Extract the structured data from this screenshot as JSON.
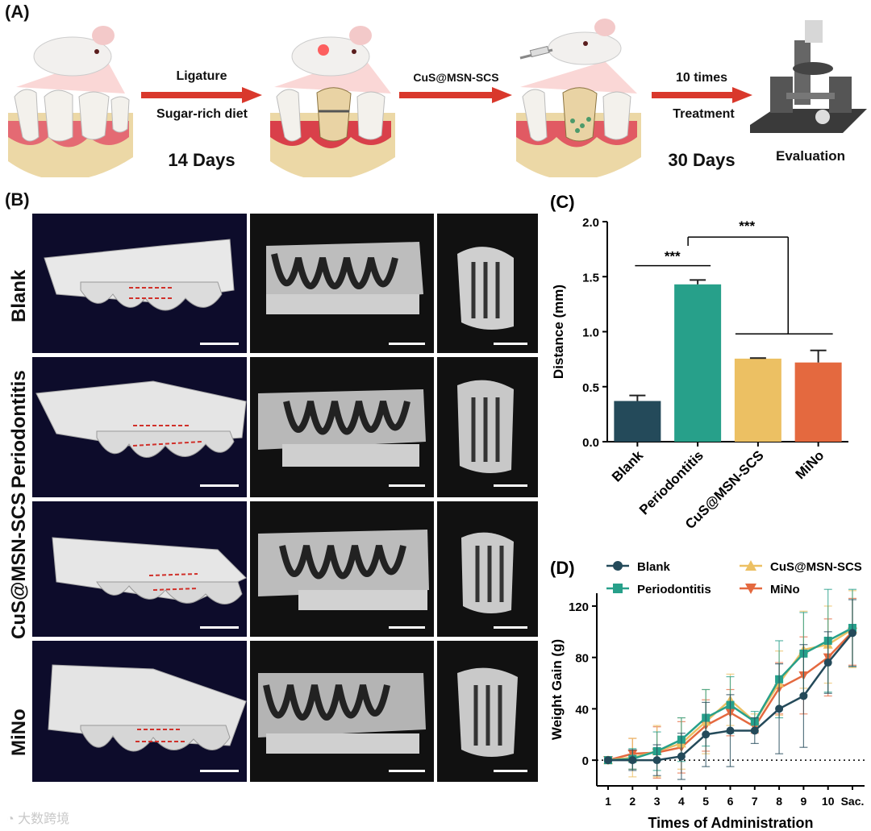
{
  "panelA": {
    "label": "(A)",
    "step1_top": "Ligature",
    "step1_bottom": "Sugar-rich diet",
    "step1_days": "14 Days",
    "step2_top": "CuS@MSN-SCS",
    "step3_top": "10 times",
    "step3_bottom": "Treatment",
    "step3_days": "30 Days",
    "step4": "Evaluation"
  },
  "panelB": {
    "label": "(B)",
    "rows": [
      "Blank",
      "Periodontitis",
      "CuS@MSN-SCS",
      "MiNo"
    ]
  },
  "chart_data": [
    {
      "panel": "(C)",
      "type": "bar",
      "categories": [
        "Blank",
        "Periodontitis",
        "CuS@MSN-SCS",
        "MiNo"
      ],
      "values": [
        0.37,
        1.43,
        0.755,
        0.72
      ],
      "errors": [
        0.05,
        0.04,
        0.005,
        0.11
      ],
      "colors": [
        "#244a5a",
        "#27a08a",
        "#ecc063",
        "#e4693f"
      ],
      "ylabel": "Distance (mm)",
      "ylim": [
        0,
        2.0
      ],
      "yticks": [
        "0.0",
        "0.5",
        "1.0",
        "1.5",
        "2.0"
      ],
      "significance": [
        "***",
        "***"
      ]
    },
    {
      "panel": "(D)",
      "type": "line",
      "x": [
        "1",
        "2",
        "3",
        "4",
        "5",
        "6",
        "7",
        "8",
        "9",
        "10",
        "Sac."
      ],
      "xlabel": "Times of Administration",
      "ylabel": "Weight Gain (g)",
      "ylim": [
        -20,
        130
      ],
      "yticks": [
        "0",
        "40",
        "80",
        "120"
      ],
      "series": [
        {
          "name": "Blank",
          "color": "#244a5a",
          "marker": "circle",
          "values": [
            0,
            0,
            0,
            3,
            20,
            23,
            23,
            40,
            50,
            76,
            99
          ],
          "errors": [
            0,
            8,
            12,
            18,
            25,
            28,
            10,
            35,
            40,
            24,
            26
          ]
        },
        {
          "name": "Periodontitis",
          "color": "#27a08a",
          "marker": "square",
          "values": [
            0,
            1,
            7,
            16,
            33,
            43,
            30,
            63,
            83,
            93,
            103
          ],
          "errors": [
            0,
            8,
            15,
            17,
            22,
            22,
            8,
            30,
            32,
            40,
            30
          ]
        },
        {
          "name": "CuS@MSN-SCS",
          "color": "#ecc063",
          "marker": "triangle-up",
          "values": [
            0,
            2,
            7,
            13,
            30,
            47,
            30,
            60,
            86,
            90,
            102
          ],
          "errors": [
            0,
            15,
            20,
            20,
            25,
            20,
            6,
            25,
            30,
            30,
            30
          ]
        },
        {
          "name": "MiNo",
          "color": "#e4693f",
          "marker": "triangle-down",
          "values": [
            0,
            5,
            6,
            10,
            27,
            37,
            26,
            56,
            66,
            80,
            100
          ],
          "errors": [
            0,
            12,
            20,
            20,
            20,
            18,
            5,
            20,
            30,
            30,
            26
          ]
        }
      ]
    }
  ],
  "watermark": "大数跨境"
}
